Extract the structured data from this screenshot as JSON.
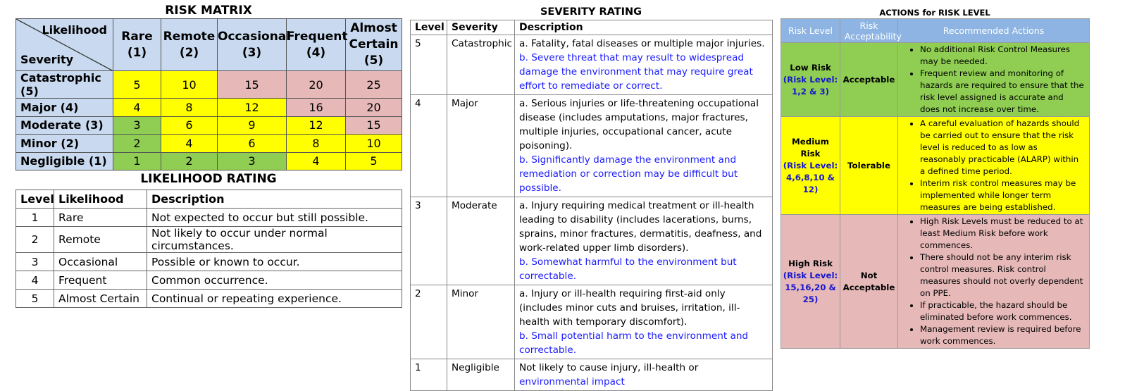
{
  "risk_matrix": {
    "title": "RISK MATRIX",
    "corner_likelihood": "Likelihood",
    "corner_severity": "Severity",
    "likelihood_headers": [
      {
        "name": "Rare",
        "num": "(1)"
      },
      {
        "name": "Remote",
        "num": "(2)"
      },
      {
        "name": "Occasional",
        "num": "(3)"
      },
      {
        "name": "Frequent",
        "num": "(4)"
      },
      {
        "name": "Almost Certain",
        "num": "(5)"
      }
    ],
    "rows": [
      {
        "label": "Catastrophic (5)",
        "values": [
          "5",
          "10",
          "15",
          "20",
          "25"
        ],
        "colors": [
          "yellow",
          "yellow",
          "pink",
          "pink",
          "pink"
        ]
      },
      {
        "label": "Major (4)",
        "values": [
          "4",
          "8",
          "12",
          "16",
          "20"
        ],
        "colors": [
          "yellow",
          "yellow",
          "yellow",
          "pink",
          "pink"
        ]
      },
      {
        "label": "Moderate (3)",
        "values": [
          "3",
          "6",
          "9",
          "12",
          "15"
        ],
        "colors": [
          "green",
          "yellow",
          "yellow",
          "yellow",
          "pink"
        ]
      },
      {
        "label": "Minor (2)",
        "values": [
          "2",
          "4",
          "6",
          "8",
          "10"
        ],
        "colors": [
          "green",
          "yellow",
          "yellow",
          "yellow",
          "yellow"
        ]
      },
      {
        "label": "Negligible (1)",
        "values": [
          "1",
          "2",
          "3",
          "4",
          "5"
        ],
        "colors": [
          "green",
          "green",
          "green",
          "yellow",
          "yellow"
        ]
      }
    ],
    "color_hex": {
      "green": "#8fce52",
      "yellow": "#ffff00",
      "pink": "#e6b8b8",
      "header": "#c9daf0"
    }
  },
  "likelihood_rating": {
    "title": "LIKELIHOOD RATING",
    "headers": [
      "Level",
      "Likelihood",
      "Description"
    ],
    "rows": [
      {
        "level": "1",
        "likelihood": "Rare",
        "description": "Not expected to occur but still possible."
      },
      {
        "level": "2",
        "likelihood": "Remote",
        "description": "Not likely to occur under normal circumstances."
      },
      {
        "level": "3",
        "likelihood": "Occasional",
        "description": "Possible or known to occur."
      },
      {
        "level": "4",
        "likelihood": "Frequent",
        "description": "Common occurrence."
      },
      {
        "level": "5",
        "likelihood": "Almost Certain",
        "description": "Continual or repeating experience."
      }
    ]
  },
  "severity_rating": {
    "title": "SEVERITY RATING",
    "headers": [
      "Level",
      "Severity",
      "Description"
    ],
    "rows": [
      {
        "level": "5",
        "severity": "Catastrophic",
        "desc_a": "a. Fatality, fatal diseases or multiple major injuries.",
        "desc_b": "b. Severe threat that may result to widespread damage the environment that may require great effort to remediate or correct."
      },
      {
        "level": "4",
        "severity": "Major",
        "desc_a": "a. Serious injuries or life-threatening occupational disease (includes amputations, major fractures, multiple injuries, occupational cancer, acute poisoning).",
        "desc_b": "b. Significantly damage the environment and remediation or correction may be difficult but possible."
      },
      {
        "level": "3",
        "severity": "Moderate",
        "desc_a": "a. Injury requiring medical treatment or ill-health leading to disability (includes lacerations, burns, sprains, minor fractures, dermatitis, deafness, and work-related upper limb disorders).",
        "desc_b": "b. Somewhat harmful to the environment but correctable."
      },
      {
        "level": "2",
        "severity": "Minor",
        "desc_a": "a. Injury or ill-health requiring first-aid only (includes minor cuts and bruises, irritation, ill-health with temporary discomfort).",
        "desc_b": "b. Small potential harm to the environment and correctable."
      },
      {
        "level": "1",
        "severity": "Negligible",
        "desc_a": "Not likely to cause injury, ill-health or",
        "desc_b": "environmental impact"
      }
    ]
  },
  "actions": {
    "title": "ACTIONS for RISK LEVEL",
    "headers": [
      "Risk Level",
      "Risk Acceptability",
      "Recommended Actions"
    ],
    "rows": [
      {
        "level": "Low Risk",
        "levels_detail": "(Risk Level: 1,2 & 3)",
        "acceptability": "Acceptable",
        "actions": [
          "No additional Risk Control Measures may be needed.",
          "Frequent review and monitoring of hazards are required to ensure that the risk level assigned is accurate and does not increase over time."
        ]
      },
      {
        "level": "Medium Risk",
        "levels_detail": "(Risk Level: 4,6,8,10 & 12)",
        "acceptability": "Tolerable",
        "actions": [
          "A careful evaluation of hazards should be carried out to ensure that the risk level is reduced to as low as reasonably practicable (ALARP) within a defined time period.",
          "Interim risk control measures may be implemented while longer term measures are being established."
        ]
      },
      {
        "level": "High Risk",
        "levels_detail": "(Risk Level: 15,16,20 & 25)",
        "acceptability": "Not Acceptable",
        "actions": [
          "High Risk Levels must be reduced to at least Medium Risk before work commences.",
          "There should not be any interim risk control measures. Risk control measures should not overly dependent on PPE.",
          "If practicable, the hazard should be eliminated before work commences.",
          "Management review is required before work commences."
        ]
      }
    ]
  }
}
